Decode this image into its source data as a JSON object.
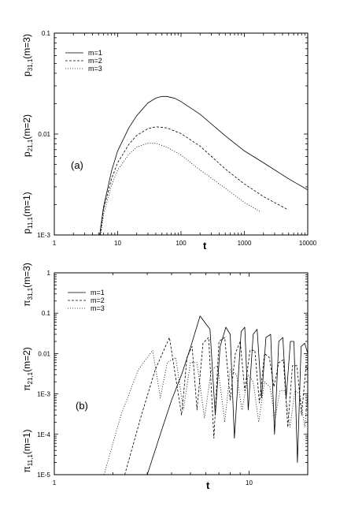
{
  "chart_data": [
    {
      "type": "line",
      "panel_label": "(a)",
      "xlabel": "t",
      "xscale": "log",
      "yscale": "log",
      "xlim": [
        1,
        10000
      ],
      "ylim": [
        0.001,
        0.1
      ],
      "x_tick_labels": [
        "1",
        "10",
        "100",
        "1000",
        "10000"
      ],
      "y_tick_labels": [
        "1E-3",
        "0.01",
        "0.1"
      ],
      "ylabels": [
        "p11,1(m=1)",
        "p21,1(m=2)",
        "p31,1(m=3)"
      ],
      "legend_position": "top-left",
      "series": [
        {
          "name": "m=1",
          "style": "solid",
          "x": [
            5.2,
            6,
            8,
            10,
            15,
            20,
            30,
            40,
            50,
            60,
            80,
            100,
            200,
            500,
            1000,
            2000,
            5000,
            10000
          ],
          "y": [
            0.001,
            0.0019,
            0.0043,
            0.0068,
            0.0115,
            0.0152,
            0.0203,
            0.0227,
            0.0236,
            0.0236,
            0.0226,
            0.021,
            0.0157,
            0.0096,
            0.0068,
            0.0052,
            0.0036,
            0.0028
          ]
        },
        {
          "name": "m=2",
          "style": "dashed",
          "x": [
            5.3,
            6,
            8,
            10,
            15,
            20,
            30,
            40,
            60,
            100,
            200,
            500,
            1000,
            2000,
            4700
          ],
          "y": [
            0.001,
            0.0018,
            0.0036,
            0.0052,
            0.0079,
            0.0097,
            0.0113,
            0.0118,
            0.0115,
            0.0101,
            0.0076,
            0.0045,
            0.0032,
            0.0024,
            0.0018
          ]
        },
        {
          "name": "m=3",
          "style": "dotted",
          "x": [
            5.4,
            6,
            8,
            10,
            15,
            20,
            30,
            40,
            60,
            100,
            200,
            500,
            1000,
            1800
          ],
          "y": [
            0.001,
            0.0016,
            0.0031,
            0.0044,
            0.0063,
            0.0074,
            0.0081,
            0.0081,
            0.0074,
            0.0062,
            0.0044,
            0.0029,
            0.0021,
            0.0017
          ]
        }
      ]
    },
    {
      "type": "line",
      "panel_label": "(b)",
      "xlabel": "t",
      "xscale": "log",
      "yscale": "log",
      "xlim": [
        1,
        20
      ],
      "ylim": [
        1e-05,
        1
      ],
      "x_tick_labels": [
        "1",
        "10"
      ],
      "y_tick_labels": [
        "1E-5",
        "1E-4",
        "1E-3",
        "0.01",
        "0.1",
        "1"
      ],
      "ylabels": [
        "π11,1(m=1)",
        "π21,1(m=2)",
        "π31,1(m=3)"
      ],
      "legend_position": "top-left",
      "series": [
        {
          "name": "m=1",
          "style": "solid",
          "x": [
            3.0,
            3.5,
            4.0,
            4.5,
            5.0,
            5.6,
            6.3,
            6.7,
            7.1,
            7.6,
            8.0,
            8.4,
            9.1,
            9.5,
            9.9,
            10.5,
            11.0,
            11.6,
            12.2,
            12.9,
            13.5,
            14.2,
            14.9,
            15.5,
            16.3,
            17.0,
            17.7,
            18.5,
            19.3,
            20.0
          ],
          "y": [
            1e-05,
            0.0001,
            0.0007,
            0.003,
            0.014,
            0.085,
            0.04,
            0.0003,
            0.015,
            0.045,
            0.03,
            8e-05,
            0.035,
            0.045,
            0.0004,
            0.03,
            0.04,
            0.0008,
            0.025,
            0.03,
            0.0001,
            0.02,
            0.025,
            0.0008,
            0.02,
            0.02,
            2e-05,
            0.015,
            0.018,
            0.01
          ]
        },
        {
          "name": "m=2",
          "style": "dashed",
          "x": [
            2.3,
            2.8,
            3.3,
            3.9,
            4.5,
            4.8,
            5.1,
            5.4,
            5.8,
            6.2,
            6.6,
            7.0,
            7.5,
            8.0,
            8.5,
            9.0,
            9.5,
            10.1,
            10.7,
            11.3,
            12.0,
            12.7,
            13.4,
            14.2,
            15.0,
            15.8,
            16.7,
            17.6,
            18.6,
            19.6,
            20.0
          ],
          "y": [
            1e-05,
            0.0003,
            0.004,
            0.025,
            0.0003,
            0.008,
            0.015,
            0.0004,
            0.018,
            0.025,
            8e-05,
            0.02,
            0.025,
            0.0007,
            0.01,
            0.02,
            0.0012,
            0.012,
            0.012,
            0.0006,
            0.01,
            0.008,
            0.0015,
            0.006,
            0.007,
            0.00015,
            0.005,
            0.005,
            0.0003,
            0.005,
            0.004
          ]
        },
        {
          "name": "m=3",
          "style": "dotted",
          "x": [
            1.8,
            2.2,
            2.7,
            3.2,
            3.5,
            3.8,
            4.2,
            4.6,
            5.0,
            5.4,
            5.9,
            6.4,
            6.9,
            7.5,
            8.0,
            8.6,
            9.2,
            9.9,
            10.5,
            11.2,
            12.0,
            12.8,
            13.6,
            14.4,
            15.3,
            16.2,
            17.2,
            18.2,
            19.3,
            20.0
          ],
          "y": [
            1e-05,
            0.0003,
            0.004,
            0.012,
            0.0008,
            0.006,
            0.008,
            0.0004,
            0.006,
            0.006,
            0.00025,
            0.004,
            0.005,
            0.0002,
            0.004,
            0.003,
            0.0004,
            0.003,
            0.002,
            0.0002,
            0.002,
            0.0015,
            0.00025,
            0.0012,
            0.0012,
            0.00015,
            0.0012,
            0.001,
            0.00015,
            0.001
          ]
        }
      ]
    }
  ]
}
